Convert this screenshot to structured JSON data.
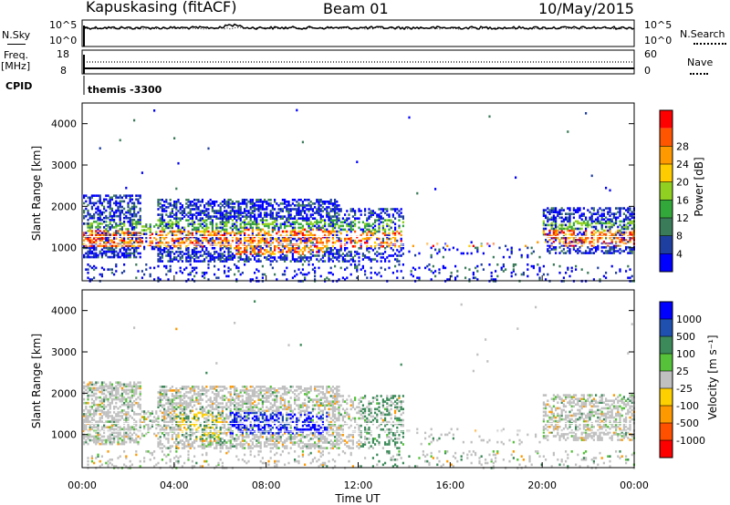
{
  "header": {
    "station": "Kapuskasing (fitACF)",
    "beam": "Beam 01",
    "date": "10/May/2015"
  },
  "noise_panel": {
    "left_label": "N.Sky",
    "left_tick_top": "10^5",
    "left_tick_bottom": "10^0",
    "right_tick_top": "10^5",
    "right_tick_bottom": "10^0",
    "right_label": "N.Search"
  },
  "freq_panel": {
    "left_label_1": "Freq.",
    "left_label_2": "[MHz]",
    "left_tick_top": "18",
    "left_tick_bottom": "8",
    "right_tick_top": "60",
    "right_tick_bottom": "0",
    "right_label": "Nave"
  },
  "cpid_panel": {
    "label": "CPID",
    "mode": "themis -3300"
  },
  "chart_data": [
    {
      "type": "heatmap",
      "name": "power-panel",
      "ylabel": "Slant Range [km]",
      "yticks": [
        "1000",
        "2000",
        "3000",
        "4000"
      ],
      "ylim": [
        200,
        4500
      ],
      "xlim": [
        0,
        24
      ],
      "colorbar_label": "Power [dB]",
      "colorbar_ticks": [
        "4",
        "8",
        "12",
        "16",
        "20",
        "24",
        "28"
      ],
      "colors": [
        "#0000ff",
        "#1f3fa0",
        "#3a7c5a",
        "#33a83a",
        "#90d020",
        "#ffcc00",
        "#ff9900",
        "#ff5500",
        "#ff0000"
      ]
    },
    {
      "type": "heatmap",
      "name": "velocity-panel",
      "ylabel": "Slant Range [km]",
      "yticks": [
        "1000",
        "2000",
        "3000",
        "4000"
      ],
      "ylim": [
        200,
        4500
      ],
      "xlim": [
        0,
        24
      ],
      "colorbar_label": "Velocity [m s⁻¹]",
      "colorbar_ticks": [
        "1000",
        "500",
        "100",
        "25",
        "-25",
        "-100",
        "-500",
        "-1000"
      ],
      "colors": [
        "#0000ff",
        "#1f50b0",
        "#3c8a5a",
        "#55c23a",
        "#c0c0c0",
        "#ffd000",
        "#ff9900",
        "#ff5000",
        "#ff0000"
      ]
    }
  ],
  "xaxis": {
    "label": "Time UT",
    "ticks": [
      "00:00",
      "04:00",
      "08:00",
      "12:00",
      "16:00",
      "20:00",
      "00:00"
    ]
  }
}
